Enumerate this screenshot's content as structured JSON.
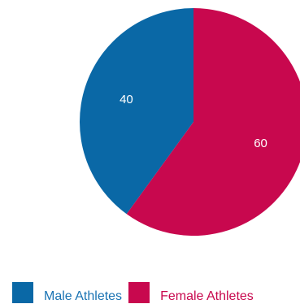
{
  "chart_data": {
    "type": "pie",
    "slices": [
      {
        "label": "Male Athletes",
        "value": 40,
        "color": "#0a68a6"
      },
      {
        "label": "Female Athletes",
        "value": 60,
        "color": "#c8084e"
      }
    ],
    "data_labels": [
      "40",
      "60"
    ],
    "legend_placement": "bottom-left",
    "start_angle": "top, counter-clockwise for first slice"
  },
  "legend": {
    "male_label": "Male Athletes",
    "female_label": "Female Athletes",
    "male_color": "#0a68a6",
    "female_color": "#c8084e",
    "male_text_color": "#1a73b3",
    "female_text_color": "#c8084e"
  }
}
